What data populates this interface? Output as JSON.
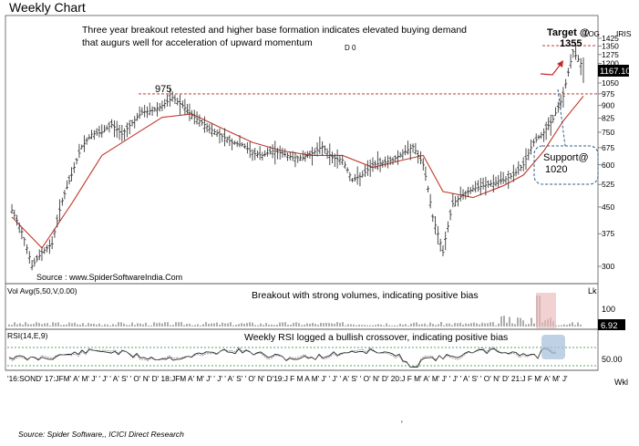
{
  "page": {
    "title": "Weekly Chart",
    "footer_source": "Source: Spider Software,, ICICI Direct Research",
    "footer_tick": "'"
  },
  "chart_data": {
    "type": "candlestick",
    "top_note": "Three year breakout retested and higher base formation indicates elevated buying demand that augurs well for acceleration of upward momentum",
    "code_label": "D 0",
    "symbol": "IRIS",
    "scale_label": "LOG",
    "watermark": "Source : www.SpiderSoftwareIndia.Com",
    "last_price_label": "1167.10",
    "y_ticks": [
      "1425",
      "1350",
      "1275",
      "1200",
      "1050",
      "975",
      "900",
      "825",
      "750",
      "675",
      "600",
      "525",
      "450",
      "375",
      "300"
    ],
    "y_scale": "log",
    "y_range": [
      240,
      1500
    ],
    "x_axis_label": "Wkl",
    "x_axis_text": "'16:SOND' 17:JFM' A' M' J' ' J' ' A' S' ' O' N' D' 18:JFM A' M' J' ' J' ' A' S' ' O' N' D'19:J F M A M' J' ' J' ' A' S' ' O' N' D' 20:J F M' A' M' J' ' J' ' A' S' ' O' N' D' 21:J F M' A' M' J'",
    "annotations": {
      "level_975": "975",
      "target_title": "Target @",
      "target_value": "1355",
      "support_title": "Support@",
      "support_value": "1020"
    },
    "colors": {
      "candle": "#3a3a3a",
      "moving_average": "#c0392b",
      "dashed_levels": "#b22222",
      "arrow": "#c62828",
      "support_box": "#2e5f8a",
      "volume_highlight": "#e9b8b8",
      "rsi_highlight": "#a9c2db",
      "price_tag": "#000000",
      "rsi_dotted": "#2e7d32"
    },
    "price_series": [
      {
        "t": "2016-09",
        "close": 440
      },
      {
        "t": "2016-10",
        "close": 380
      },
      {
        "t": "2016-11",
        "close": 300
      },
      {
        "t": "2016-12",
        "close": 330
      },
      {
        "t": "2017-01",
        "close": 350
      },
      {
        "t": "2017-02",
        "close": 470
      },
      {
        "t": "2017-03",
        "close": 560
      },
      {
        "t": "2017-04",
        "close": 680
      },
      {
        "t": "2017-05",
        "close": 740
      },
      {
        "t": "2017-06",
        "close": 750
      },
      {
        "t": "2017-07",
        "close": 790
      },
      {
        "t": "2017-08",
        "close": 740
      },
      {
        "t": "2017-09",
        "close": 800
      },
      {
        "t": "2017-10",
        "close": 860
      },
      {
        "t": "2017-11",
        "close": 870
      },
      {
        "t": "2017-12",
        "close": 900
      },
      {
        "t": "2018-01",
        "close": 950
      },
      {
        "t": "2018-02",
        "close": 900
      },
      {
        "t": "2018-03",
        "close": 840
      },
      {
        "t": "2018-04",
        "close": 800
      },
      {
        "t": "2018-05",
        "close": 760
      },
      {
        "t": "2018-06",
        "close": 730
      },
      {
        "t": "2018-07",
        "close": 700
      },
      {
        "t": "2018-08",
        "close": 690
      },
      {
        "t": "2018-09",
        "close": 650
      },
      {
        "t": "2018-10",
        "close": 640
      },
      {
        "t": "2018-11",
        "close": 660
      },
      {
        "t": "2018-12",
        "close": 650
      },
      {
        "t": "2019-01",
        "close": 630
      },
      {
        "t": "2019-02",
        "close": 630
      },
      {
        "t": "2019-03",
        "close": 650
      },
      {
        "t": "2019-04",
        "close": 680
      },
      {
        "t": "2019-05",
        "close": 630
      },
      {
        "t": "2019-06",
        "close": 620
      },
      {
        "t": "2019-07",
        "close": 540
      },
      {
        "t": "2019-08",
        "close": 560
      },
      {
        "t": "2019-09",
        "close": 600
      },
      {
        "t": "2019-10",
        "close": 610
      },
      {
        "t": "2019-11",
        "close": 620
      },
      {
        "t": "2019-12",
        "close": 650
      },
      {
        "t": "2020-01",
        "close": 680
      },
      {
        "t": "2020-02",
        "close": 600
      },
      {
        "t": "2020-03",
        "close": 420
      },
      {
        "t": "2020-04",
        "close": 330
      },
      {
        "t": "2020-05",
        "close": 460
      },
      {
        "t": "2020-06",
        "close": 490
      },
      {
        "t": "2020-07",
        "close": 510
      },
      {
        "t": "2020-08",
        "close": 520
      },
      {
        "t": "2020-09",
        "close": 530
      },
      {
        "t": "2020-10",
        "close": 540
      },
      {
        "t": "2020-11",
        "close": 560
      },
      {
        "t": "2020-12",
        "close": 600
      },
      {
        "t": "2021-01",
        "close": 700
      },
      {
        "t": "2021-02",
        "close": 750
      },
      {
        "t": "2021-03",
        "close": 820
      },
      {
        "t": "2021-04",
        "close": 960
      },
      {
        "t": "2021-05",
        "close": 1300
      },
      {
        "t": "2021-06",
        "close": 1167
      }
    ],
    "ma_series": [
      {
        "t": "2016-09",
        "value": 420
      },
      {
        "t": "2016-12",
        "value": 340
      },
      {
        "t": "2017-03",
        "value": 460
      },
      {
        "t": "2017-06",
        "value": 640
      },
      {
        "t": "2017-09",
        "value": 730
      },
      {
        "t": "2017-12",
        "value": 830
      },
      {
        "t": "2018-03",
        "value": 850
      },
      {
        "t": "2018-06",
        "value": 770
      },
      {
        "t": "2018-09",
        "value": 700
      },
      {
        "t": "2018-12",
        "value": 660
      },
      {
        "t": "2019-03",
        "value": 640
      },
      {
        "t": "2019-06",
        "value": 640
      },
      {
        "t": "2019-09",
        "value": 590
      },
      {
        "t": "2019-12",
        "value": 620
      },
      {
        "t": "2020-02",
        "value": 640
      },
      {
        "t": "2020-04",
        "value": 500
      },
      {
        "t": "2020-07",
        "value": 480
      },
      {
        "t": "2020-10",
        "value": 520
      },
      {
        "t": "2020-12",
        "value": 560
      },
      {
        "t": "2021-02",
        "value": 660
      },
      {
        "t": "2021-04",
        "value": 810
      },
      {
        "t": "2021-06",
        "value": 960
      }
    ],
    "levels": [
      {
        "name": "breakout",
        "value": 975
      },
      {
        "name": "target",
        "value": 1355
      }
    ],
    "volume": {
      "label": "Vol Avg(5,50,V,0.00)",
      "note": "Breakout with strong volumes, indicating positive bias",
      "unit_label": "Lk",
      "ticks": [
        "100"
      ],
      "value_label": "6.92"
    },
    "rsi": {
      "label": "RSI(14,E,9)",
      "note": "Weekly RSI logged a bullish crossover, indicating positive bias",
      "ticks": [
        "50.00"
      ]
    }
  }
}
